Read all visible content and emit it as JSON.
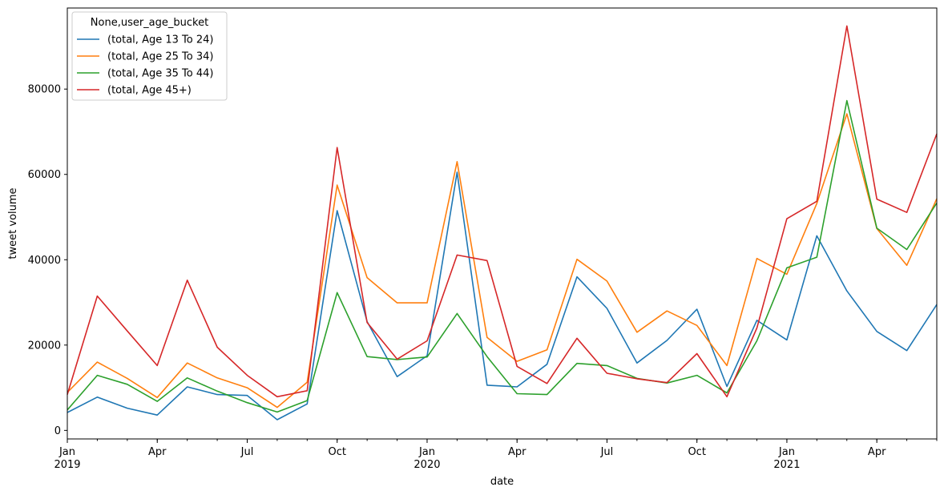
{
  "chart_data": {
    "type": "line",
    "xlabel": "date",
    "ylabel": "tweet volume",
    "ylim": [
      -2000,
      99000
    ],
    "y_ticks": [
      0,
      20000,
      40000,
      60000,
      80000
    ],
    "x": [
      "2019-01",
      "2019-02",
      "2019-03",
      "2019-04",
      "2019-05",
      "2019-06",
      "2019-07",
      "2019-08",
      "2019-09",
      "2019-10",
      "2019-11",
      "2019-12",
      "2020-01",
      "2020-02",
      "2020-03",
      "2020-04",
      "2020-05",
      "2020-06",
      "2020-07",
      "2020-08",
      "2020-09",
      "2020-10",
      "2020-11",
      "2020-12",
      "2021-01",
      "2021-02",
      "2021-03",
      "2021-04",
      "2021-05",
      "2021-06"
    ],
    "x_tick_labels": [
      {
        "month": "2019-01",
        "line1": "Jan",
        "line2": "2019"
      },
      {
        "month": "2019-04",
        "line1": "Apr",
        "line2": ""
      },
      {
        "month": "2019-07",
        "line1": "Jul",
        "line2": ""
      },
      {
        "month": "2019-10",
        "line1": "Oct",
        "line2": ""
      },
      {
        "month": "2020-01",
        "line1": "Jan",
        "line2": "2020"
      },
      {
        "month": "2020-04",
        "line1": "Apr",
        "line2": ""
      },
      {
        "month": "2020-07",
        "line1": "Jul",
        "line2": ""
      },
      {
        "month": "2020-10",
        "line1": "Oct",
        "line2": ""
      },
      {
        "month": "2021-01",
        "line1": "Jan",
        "line2": "2021"
      },
      {
        "month": "2021-04",
        "line1": "Apr",
        "line2": ""
      }
    ],
    "legend": {
      "title": "None,user_age_bucket",
      "placement": "top-left"
    },
    "grid": false,
    "series": [
      {
        "name": "(total, Age 13 To 24)",
        "color": "#1f77b4",
        "values": [
          4200,
          7800,
          5200,
          3600,
          10200,
          8400,
          8200,
          2500,
          6200,
          51500,
          25500,
          12600,
          17500,
          60500,
          10600,
          10200,
          15500,
          36000,
          28600,
          15800,
          21100,
          28400,
          10300,
          25800,
          21200,
          45600,
          32700,
          23200,
          18700,
          29500
        ]
      },
      {
        "name": "(total, Age 25 To 34)",
        "color": "#ff7f0e",
        "values": [
          8900,
          16000,
          12200,
          7700,
          15800,
          12300,
          10000,
          5400,
          11300,
          57500,
          35800,
          29900,
          29900,
          63000,
          21800,
          16200,
          18900,
          40100,
          35000,
          23000,
          28000,
          24600,
          15200,
          40300,
          36600,
          53200,
          74200,
          47300,
          38700,
          54300
        ]
      },
      {
        "name": "(total, Age 35 To 44)",
        "color": "#2ca02c",
        "values": [
          4800,
          12900,
          10800,
          6800,
          12300,
          9200,
          6500,
          4300,
          7000,
          32300,
          17300,
          16600,
          17200,
          27400,
          17300,
          8600,
          8400,
          15700,
          15200,
          12200,
          11100,
          12900,
          8800,
          21000,
          38100,
          40600,
          77300,
          47400,
          42400,
          53300
        ]
      },
      {
        "name": "(total, Age 45+)",
        "color": "#d62728",
        "values": [
          8400,
          31500,
          23300,
          15200,
          35200,
          19500,
          12900,
          7900,
          9300,
          66300,
          25300,
          16700,
          21000,
          41100,
          39800,
          15000,
          11000,
          21600,
          13400,
          12100,
          11200,
          18000,
          7900,
          24000,
          49600,
          53700,
          94800,
          54200,
          51100,
          69500
        ]
      }
    ]
  }
}
